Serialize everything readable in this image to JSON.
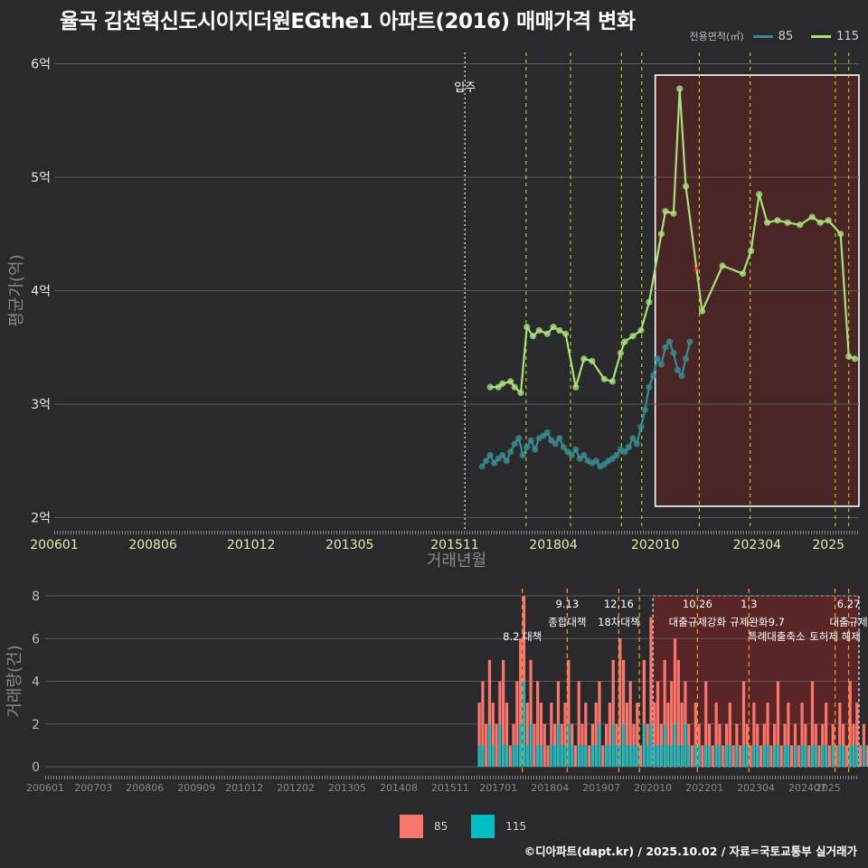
{
  "title": "율곡 김천혁신도시이지더원EGthe1 아파트(2016) 매매가격 변화",
  "legend": {
    "label": "전용면적(㎡)",
    "items": [
      {
        "name": "85",
        "color": "#3a8a8e"
      },
      {
        "name": "115",
        "color": "#a8e07a"
      }
    ]
  },
  "bar_legend": [
    {
      "name": "85",
      "color": "#f8766d"
    },
    {
      "name": "115",
      "color": "#00bfc4"
    }
  ],
  "credit": "©디아파트(dapt.kr) / 2025.10.02 / 자료=국토교통부 실거래가",
  "chart_data": [
    {
      "type": "line",
      "title": "율곡 김천혁신도시이지더원EGthe1 아파트(2016) 매매가격 변화",
      "xlabel": "거래년월",
      "ylabel": "평균가(억)",
      "xlim": [
        2006.0,
        2025.75
      ],
      "ylim": [
        1.9,
        6.1
      ],
      "x_ticks": [
        2006.0,
        2008.42,
        2010.83,
        2013.25,
        2015.83,
        2018.25,
        2020.75,
        2023.25,
        2025.0
      ],
      "x_tick_labels": [
        "200601",
        "200806",
        "201012",
        "201305",
        "201511",
        "201804",
        "202010",
        "202304",
        "2025"
      ],
      "y_ticks": [
        2,
        3,
        4,
        5,
        6
      ],
      "y_tick_labels": [
        "2억",
        "3억",
        "4억",
        "5억",
        "6억"
      ],
      "movein": {
        "x": 2016.08,
        "label": "입주"
      },
      "policy_lines": [
        2017.58,
        2018.67,
        2019.92,
        2020.42,
        2021.83,
        2023.08,
        2025.17,
        2025.5
      ],
      "highlight": {
        "x0": 2020.75,
        "x1": 2025.75,
        "y0": 2.1,
        "y1": 5.9
      },
      "marker": {
        "x": 2021.75,
        "y": 4.2
      },
      "series": [
        {
          "name": "85",
          "color": "#3a8a8e",
          "x": [
            2016.5,
            2016.6,
            2016.7,
            2016.8,
            2016.9,
            2017.0,
            2017.1,
            2017.2,
            2017.3,
            2017.4,
            2017.5,
            2017.6,
            2017.7,
            2017.8,
            2017.9,
            2018.0,
            2018.1,
            2018.2,
            2018.3,
            2018.4,
            2018.5,
            2018.6,
            2018.7,
            2018.8,
            2018.9,
            2019.0,
            2019.1,
            2019.2,
            2019.3,
            2019.4,
            2019.5,
            2019.6,
            2019.7,
            2019.8,
            2019.9,
            2020.0,
            2020.1,
            2020.2,
            2020.3,
            2020.4,
            2020.5,
            2020.6,
            2020.7,
            2020.8,
            2020.9,
            2021.0,
            2021.1,
            2021.2,
            2021.3,
            2021.4,
            2021.5,
            2021.6
          ],
          "y": [
            2.45,
            2.5,
            2.55,
            2.48,
            2.52,
            2.55,
            2.5,
            2.58,
            2.65,
            2.7,
            2.55,
            2.62,
            2.68,
            2.6,
            2.7,
            2.72,
            2.75,
            2.68,
            2.65,
            2.7,
            2.62,
            2.58,
            2.55,
            2.6,
            2.52,
            2.55,
            2.5,
            2.48,
            2.5,
            2.45,
            2.47,
            2.5,
            2.52,
            2.55,
            2.6,
            2.58,
            2.62,
            2.7,
            2.65,
            2.8,
            2.95,
            3.15,
            3.25,
            3.4,
            3.35,
            3.5,
            3.55,
            3.45,
            3.3,
            3.25,
            3.4,
            3.55
          ]
        },
        {
          "name": "115",
          "color": "#a8e07a",
          "x": [
            2016.7,
            2016.9,
            2017.0,
            2017.2,
            2017.3,
            2017.45,
            2017.6,
            2017.75,
            2017.9,
            2018.1,
            2018.25,
            2018.4,
            2018.55,
            2018.8,
            2019.0,
            2019.2,
            2019.5,
            2019.7,
            2019.9,
            2020.0,
            2020.2,
            2020.4,
            2020.6,
            2020.9,
            2021.0,
            2021.2,
            2021.35,
            2021.5,
            2021.9,
            2022.4,
            2022.9,
            2023.1,
            2023.3,
            2023.5,
            2023.75,
            2024.0,
            2024.3,
            2024.6,
            2024.8,
            2025.0,
            2025.3,
            2025.5,
            2025.65
          ],
          "y": [
            3.15,
            3.15,
            3.18,
            3.2,
            3.15,
            3.1,
            3.68,
            3.6,
            3.65,
            3.62,
            3.68,
            3.65,
            3.62,
            3.15,
            3.4,
            3.38,
            3.22,
            3.2,
            3.45,
            3.55,
            3.6,
            3.65,
            3.9,
            4.5,
            4.7,
            4.68,
            5.78,
            4.92,
            3.82,
            4.22,
            4.15,
            4.35,
            4.85,
            4.6,
            4.62,
            4.6,
            4.58,
            4.65,
            4.6,
            4.62,
            4.5,
            3.42,
            3.4
          ]
        }
      ]
    },
    {
      "type": "bar",
      "title": "",
      "xlabel": "",
      "ylabel": "거래량(건)",
      "xlim": [
        2006.0,
        2025.75
      ],
      "ylim": [
        0,
        8
      ],
      "y_ticks": [
        0,
        2,
        4,
        6,
        8
      ],
      "x_ticks": [
        2006.0,
        2007.17,
        2008.42,
        2009.67,
        2010.83,
        2012.08,
        2013.33,
        2014.58,
        2015.83,
        2017.0,
        2018.25,
        2019.5,
        2020.75,
        2022.0,
        2023.25,
        2024.5,
        2025.0
      ],
      "x_tick_labels": [
        "200601",
        "200703",
        "200806",
        "200909",
        "201012",
        "201202",
        "201305",
        "201408",
        "201511",
        "201701",
        "201804",
        "201907",
        "202010",
        "202201",
        "202304",
        "202407",
        "2025"
      ],
      "policy_lines": [
        2017.58,
        2018.67,
        2019.92,
        2020.42,
        2021.83,
        2023.08,
        2025.17,
        2025.5
      ],
      "annotations": [
        {
          "x": 2017.58,
          "text": "8.2 대책",
          "row": 2
        },
        {
          "x": 2018.67,
          "text": "9.13",
          "row": 0
        },
        {
          "x": 2018.67,
          "text": "종합대책",
          "row": 1
        },
        {
          "x": 2019.92,
          "text": "12.16",
          "row": 0
        },
        {
          "x": 2019.92,
          "text": "18차대책",
          "row": 1
        },
        {
          "x": 2021.83,
          "text": "10.26",
          "row": 0
        },
        {
          "x": 2021.83,
          "text": "대출규제강화",
          "row": 1
        },
        {
          "x": 2023.08,
          "text": "1.3",
          "row": 0
        },
        {
          "x": 2023.08,
          "text": "규제완화",
          "row": 1
        },
        {
          "x": 2023.75,
          "text": "9.7",
          "row": 1
        },
        {
          "x": 2023.75,
          "text": "특례대출축소",
          "row": 2
        },
        {
          "x": 2025.17,
          "text": "토허제 해제",
          "row": 2
        },
        {
          "x": 2025.5,
          "text": "6.27",
          "row": 0
        },
        {
          "x": 2025.5,
          "text": "대출규제",
          "row": 1
        }
      ],
      "highlight": {
        "x0": 2020.75,
        "x1": 2025.75,
        "y0": 0,
        "y1": 8
      },
      "start": 2016.5,
      "series": [
        {
          "name": "85",
          "color": "#f8766d",
          "values": [
            3,
            4,
            2,
            5,
            3,
            2,
            4,
            5,
            3,
            1,
            2,
            4,
            6,
            8,
            3,
            5,
            2,
            4,
            3,
            2,
            1,
            3,
            2,
            4,
            2,
            3,
            5,
            2,
            1,
            4,
            2,
            3,
            1,
            2,
            3,
            4,
            1,
            2,
            3,
            5,
            2,
            6,
            5,
            3,
            4,
            2,
            3,
            1,
            5,
            2,
            7,
            3,
            4,
            2,
            5,
            3,
            4,
            6,
            5,
            3,
            4,
            2,
            1,
            3,
            2,
            1,
            4,
            2,
            1,
            3,
            2,
            1,
            2,
            3,
            1,
            2,
            1,
            4,
            2,
            1,
            3,
            2,
            1,
            2,
            3,
            1,
            2,
            4,
            1,
            2,
            3,
            1,
            2,
            1,
            3,
            2,
            1,
            4,
            2,
            1,
            2,
            3,
            1,
            2,
            1,
            3,
            2,
            1,
            4,
            2,
            3,
            1,
            2,
            1,
            3,
            7,
            2,
            1,
            4,
            2,
            6,
            1,
            2,
            3,
            1,
            2,
            4,
            2,
            5,
            1
          ]
        },
        {
          "name": "115",
          "color": "#00bfc4",
          "values": [
            1,
            1,
            0,
            2,
            1,
            0,
            2,
            1,
            1,
            0,
            1,
            1,
            2,
            4,
            1,
            2,
            0,
            1,
            1,
            0,
            0,
            1,
            1,
            2,
            1,
            1,
            2,
            1,
            0,
            1,
            1,
            1,
            0,
            1,
            1,
            2,
            0,
            1,
            1,
            2,
            1,
            1,
            2,
            1,
            1,
            1,
            1,
            0,
            2,
            1,
            2,
            1,
            1,
            1,
            2,
            1,
            1,
            2,
            1,
            1,
            2,
            1,
            0,
            1,
            1,
            0,
            1,
            1,
            0,
            1,
            1,
            0,
            1,
            1,
            0,
            1,
            0,
            1,
            1,
            0,
            1,
            1,
            0,
            1,
            1,
            0,
            1,
            1,
            0,
            1,
            1,
            0,
            1,
            0,
            1,
            1,
            0,
            1,
            1,
            0,
            1,
            1,
            0,
            1,
            0,
            1,
            1,
            0,
            1,
            1,
            1,
            0,
            1,
            0,
            1,
            2,
            1,
            0,
            1,
            1,
            1,
            0,
            1,
            1,
            0,
            1,
            1,
            1,
            1,
            0
          ]
        }
      ]
    }
  ]
}
